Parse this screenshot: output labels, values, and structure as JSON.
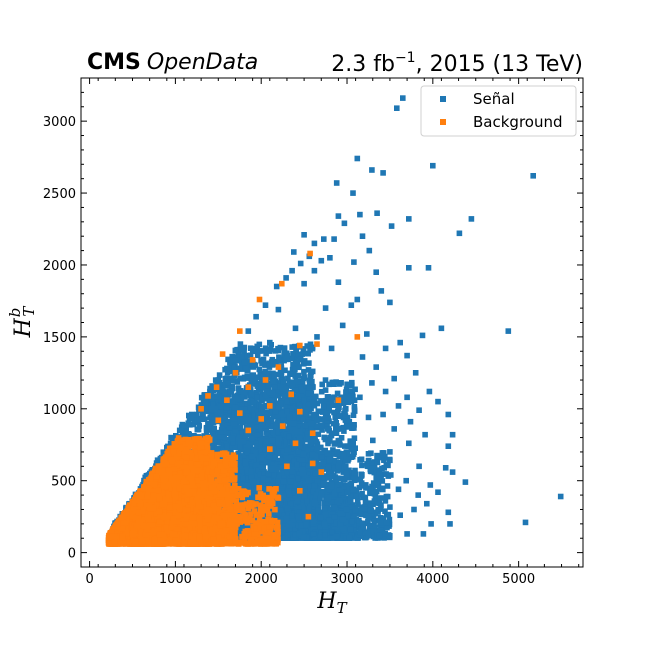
{
  "header": {
    "experiment": "CMS",
    "subtitle": "OpenData",
    "lumi_prefix": "2.3 fb",
    "lumi_exp": "−1",
    "lumi_suffix": ", 2015 (13 TeV)"
  },
  "chart_data": {
    "type": "scatter",
    "title": "",
    "xlabel_main": "H",
    "xlabel_sub": "T",
    "ylabel_main": "H",
    "ylabel_sub": "T",
    "ylabel_sup": "b",
    "xlim": [
      -100,
      5750
    ],
    "ylim": [
      -100,
      3300
    ],
    "xticks": [
      0,
      1000,
      2000,
      3000,
      4000,
      5000
    ],
    "yticks": [
      0,
      500,
      1000,
      1500,
      2000,
      2500,
      3000
    ],
    "legend_position": "top-right",
    "series": [
      {
        "name": "Señal",
        "color": "#1f77b4",
        "marker": "square",
        "points": [
          [
            3650,
            3160
          ],
          [
            3580,
            3090
          ],
          [
            3120,
            2740
          ],
          [
            3290,
            2660
          ],
          [
            3420,
            2640
          ],
          [
            4000,
            2690
          ],
          [
            5170,
            2620
          ],
          [
            2880,
            2570
          ],
          [
            3070,
            2500
          ],
          [
            4450,
            2320
          ],
          [
            3350,
            2360
          ],
          [
            3520,
            2270
          ],
          [
            3720,
            2320
          ],
          [
            3150,
            2350
          ],
          [
            2900,
            2340
          ],
          [
            4310,
            2220
          ],
          [
            2970,
            2290
          ],
          [
            2500,
            2210
          ],
          [
            2620,
            2150
          ],
          [
            2730,
            2180
          ],
          [
            2850,
            2180
          ],
          [
            3180,
            2200
          ],
          [
            2380,
            2090
          ],
          [
            2560,
            2060
          ],
          [
            2700,
            2030
          ],
          [
            3080,
            2020
          ],
          [
            3260,
            2100
          ],
          [
            2800,
            2050
          ],
          [
            3720,
            1980
          ],
          [
            3950,
            1980
          ],
          [
            2460,
            2010
          ],
          [
            2360,
            1960
          ],
          [
            2290,
            1910
          ],
          [
            2620,
            1960
          ],
          [
            3340,
            1950
          ],
          [
            2180,
            1850
          ],
          [
            2900,
            1880
          ],
          [
            3400,
            1820
          ],
          [
            2050,
            1720
          ],
          [
            2500,
            1870
          ],
          [
            3120,
            1760
          ],
          [
            2750,
            1700
          ],
          [
            1940,
            1640
          ],
          [
            2200,
            1690
          ],
          [
            3050,
            1720
          ],
          [
            3500,
            1740
          ],
          [
            4100,
            1560
          ],
          [
            4880,
            1540
          ],
          [
            3230,
            1520
          ],
          [
            2400,
            1560
          ],
          [
            1850,
            1540
          ],
          [
            2650,
            1500
          ],
          [
            2950,
            1580
          ],
          [
            3620,
            1460
          ],
          [
            3880,
            1510
          ],
          [
            3700,
            1370
          ],
          [
            3450,
            1420
          ],
          [
            1800,
            1410
          ],
          [
            2100,
            1460
          ],
          [
            2820,
            1420
          ],
          [
            3180,
            1360
          ],
          [
            3340,
            1290
          ],
          [
            1700,
            1340
          ],
          [
            2400,
            1320
          ],
          [
            3800,
            1250
          ],
          [
            3050,
            1250
          ],
          [
            1600,
            1280
          ],
          [
            2150,
            1230
          ],
          [
            2600,
            1260
          ],
          [
            3550,
            1210
          ],
          [
            3960,
            1120
          ],
          [
            1500,
            1200
          ],
          [
            3290,
            1180
          ],
          [
            3700,
            1080
          ],
          [
            2250,
            1150
          ],
          [
            2750,
            1130
          ],
          [
            3450,
            1120
          ],
          [
            1420,
            1110
          ],
          [
            1950,
            1080
          ],
          [
            3150,
            1080
          ],
          [
            4060,
            1050
          ],
          [
            2500,
            1060
          ],
          [
            3600,
            1020
          ],
          [
            1350,
            1040
          ],
          [
            3840,
            990
          ],
          [
            2900,
            1000
          ],
          [
            2300,
            980
          ],
          [
            3420,
            960
          ],
          [
            4180,
            960
          ],
          [
            1700,
            1010
          ],
          [
            1250,
            960
          ],
          [
            3250,
            940
          ],
          [
            3740,
            910
          ],
          [
            2650,
            920
          ],
          [
            3000,
            880
          ],
          [
            1150,
            900
          ],
          [
            2080,
            900
          ],
          [
            3550,
            860
          ],
          [
            4230,
            820
          ],
          [
            3910,
            820
          ],
          [
            1050,
            850
          ],
          [
            2450,
            840
          ],
          [
            1850,
            830
          ],
          [
            2800,
            800
          ],
          [
            3300,
            780
          ],
          [
            4180,
            740
          ],
          [
            3720,
            760
          ],
          [
            950,
            800
          ],
          [
            2200,
            760
          ],
          [
            3050,
            720
          ],
          [
            1600,
            740
          ],
          [
            3500,
            700
          ],
          [
            4150,
            590
          ],
          [
            4230,
            560
          ],
          [
            3840,
            600
          ],
          [
            900,
            730
          ],
          [
            2600,
            680
          ],
          [
            3250,
            640
          ],
          [
            2000,
            660
          ],
          [
            2900,
            600
          ],
          [
            4380,
            490
          ],
          [
            3690,
            500
          ],
          [
            3970,
            470
          ],
          [
            3510,
            540
          ],
          [
            3340,
            520
          ],
          [
            4060,
            420
          ],
          [
            3830,
            400
          ],
          [
            3600,
            440
          ],
          [
            3220,
            450
          ],
          [
            5490,
            390
          ],
          [
            850,
            650
          ],
          [
            1400,
            640
          ],
          [
            2350,
            580
          ],
          [
            3050,
            480
          ],
          [
            3400,
            380
          ],
          [
            3930,
            340
          ],
          [
            3780,
            300
          ],
          [
            4180,
            280
          ],
          [
            3620,
            260
          ],
          [
            3460,
            210
          ],
          [
            3250,
            250
          ],
          [
            4200,
            200
          ],
          [
            3980,
            200
          ],
          [
            5080,
            210
          ],
          [
            3890,
            130
          ],
          [
            3150,
            140
          ],
          [
            3700,
            130
          ],
          [
            3040,
            160
          ],
          [
            3380,
            120
          ],
          [
            2950,
            230
          ]
        ],
        "clusters": [
          {
            "x_range": [
              250,
              1300
            ],
            "y_range": [
              80,
              700
            ],
            "count": 1400
          },
          {
            "x_range": [
              600,
              2000
            ],
            "y_range": [
              100,
              1100
            ],
            "count": 1800
          },
          {
            "x_range": [
              1400,
              2600
            ],
            "y_range": [
              100,
              1450
            ],
            "count": 2200
          },
          {
            "x_range": [
              2000,
              3100
            ],
            "y_range": [
              100,
              1200
            ],
            "count": 1200
          },
          {
            "x_range": [
              2600,
              3500
            ],
            "y_range": [
              100,
              700
            ],
            "count": 500
          }
        ]
      },
      {
        "name": "Background",
        "color": "#ff7f0e",
        "marker": "square",
        "points": [
          [
            2570,
            2080
          ],
          [
            2240,
            1870
          ],
          [
            1980,
            1760
          ],
          [
            1750,
            1540
          ],
          [
            2450,
            1440
          ],
          [
            3120,
            1500
          ],
          [
            2650,
            1450
          ],
          [
            1550,
            1380
          ],
          [
            1900,
            1340
          ],
          [
            2200,
            1290
          ],
          [
            1700,
            1250
          ],
          [
            2050,
            1200
          ],
          [
            1480,
            1150
          ],
          [
            1850,
            1150
          ],
          [
            2350,
            1100
          ],
          [
            2900,
            1060
          ],
          [
            1380,
            1090
          ],
          [
            1600,
            1060
          ],
          [
            2100,
            1020
          ],
          [
            2450,
            980
          ],
          [
            1300,
            1000
          ],
          [
            1750,
            970
          ],
          [
            2000,
            930
          ],
          [
            2250,
            880
          ],
          [
            1500,
            920
          ],
          [
            2600,
            830
          ],
          [
            1850,
            850
          ],
          [
            2400,
            760
          ],
          [
            2100,
            720
          ],
          [
            2700,
            560
          ],
          [
            2600,
            620
          ],
          [
            2300,
            600
          ],
          [
            2450,
            430
          ],
          [
            2200,
            380
          ],
          [
            2550,
            250
          ]
        ],
        "clusters": [
          {
            "x_range": [
              220,
              900
            ],
            "y_range": [
              60,
              450
            ],
            "count": 1500
          },
          {
            "x_range": [
              500,
              1400
            ],
            "y_range": [
              60,
              800
            ],
            "count": 2200
          },
          {
            "x_range": [
              1100,
              1700
            ],
            "y_range": [
              60,
              700
            ],
            "count": 800
          },
          {
            "x_range": [
              1500,
              2200
            ],
            "y_range": [
              60,
              450
            ],
            "count": 300
          }
        ]
      }
    ]
  }
}
